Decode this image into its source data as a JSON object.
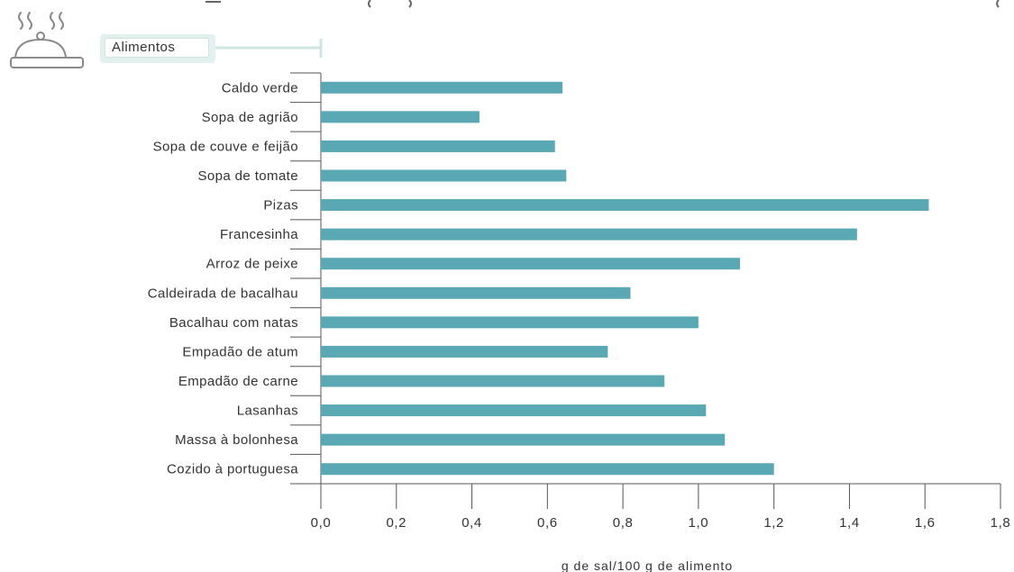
{
  "header": {
    "category_box_label": "Alimentos",
    "icon": "food-cloche-icon"
  },
  "colors": {
    "bar": "#5aa8b3",
    "axis": "#555555",
    "legend_bg": "#e3f1ee",
    "legend_line": "#cde6e1"
  },
  "chart_data": {
    "type": "bar",
    "orientation": "horizontal",
    "categories": [
      "Caldo verde",
      "Sopa de agrião",
      "Sopa de couve e feijão",
      "Sopa de tomate",
      "Pizas",
      "Francesinha",
      "Arroz de peixe",
      "Caldeirada de bacalhau",
      "Bacalhau com natas",
      "Empadão de atum",
      "Empadão de carne",
      "Lasanhas",
      "Massa à bolonhesa",
      "Cozido à portuguesa"
    ],
    "values": [
      0.64,
      0.42,
      0.62,
      0.65,
      1.61,
      1.42,
      1.11,
      0.82,
      1.0,
      0.76,
      0.91,
      1.02,
      1.07,
      1.2
    ],
    "xlabel": "g de sal/100 g de alimento",
    "xlim": [
      0,
      1.8
    ],
    "x_ticks": [
      "0,0",
      "0,2",
      "0,4",
      "0,6",
      "0,8",
      "1,0",
      "1,2",
      "1,4",
      "1,6",
      "1,8"
    ],
    "grid": false
  }
}
